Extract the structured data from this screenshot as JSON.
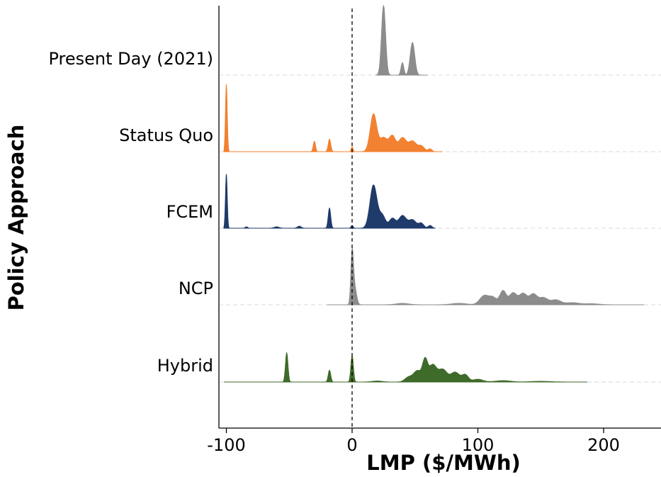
{
  "chart_data": {
    "type": "ridgeline",
    "xlabel": "LMP ($/MWh)",
    "ylabel": "Policy Approach",
    "xlim": [
      -105,
      245
    ],
    "xticks": [
      {
        "value": -100,
        "label": "-100"
      },
      {
        "value": 0,
        "label": "0"
      },
      {
        "value": 100,
        "label": "100"
      },
      {
        "value": 200,
        "label": "200"
      }
    ],
    "reference_line_x": 0,
    "grid": false,
    "series": [
      {
        "name": "Present Day (2021)",
        "color": "#8c8c8c",
        "x_range": [
          19,
          60
        ],
        "peaks": [
          {
            "x": 25,
            "h": 1.0,
            "w": 1.6
          },
          {
            "x": 40,
            "h": 0.18,
            "w": 1.1
          },
          {
            "x": 48,
            "h": 0.47,
            "w": 1.8
          }
        ]
      },
      {
        "name": "Status Quo",
        "color": "#f28131",
        "x_range": [
          -102,
          72
        ],
        "peaks": [
          {
            "x": -100,
            "h": 0.97,
            "w": 0.7
          },
          {
            "x": -30,
            "h": 0.15,
            "w": 0.9
          },
          {
            "x": -18,
            "h": 0.18,
            "w": 1.0
          },
          {
            "x": 0,
            "h": 0.07,
            "w": 0.7
          },
          {
            "x": 17,
            "h": 0.54,
            "w": 2.6
          },
          {
            "x": 25,
            "h": 0.2,
            "w": 3.0
          },
          {
            "x": 32,
            "h": 0.22,
            "w": 2.5
          },
          {
            "x": 40,
            "h": 0.2,
            "w": 3.0
          },
          {
            "x": 48,
            "h": 0.15,
            "w": 3.0
          },
          {
            "x": 55,
            "h": 0.08,
            "w": 2.5
          },
          {
            "x": 62,
            "h": 0.04,
            "w": 1.5
          }
        ]
      },
      {
        "name": "FCEM",
        "color": "#1f3b6b",
        "x_range": [
          -102,
          66
        ],
        "peaks": [
          {
            "x": -100,
            "h": 0.78,
            "w": 0.7
          },
          {
            "x": -84,
            "h": 0.02,
            "w": 1.0
          },
          {
            "x": -60,
            "h": 0.02,
            "w": 2.0
          },
          {
            "x": -42,
            "h": 0.03,
            "w": 1.5
          },
          {
            "x": -18,
            "h": 0.29,
            "w": 1.0
          },
          {
            "x": 0,
            "h": 0.04,
            "w": 0.8
          },
          {
            "x": 17,
            "h": 0.62,
            "w": 2.8
          },
          {
            "x": 24,
            "h": 0.18,
            "w": 2.5
          },
          {
            "x": 32,
            "h": 0.14,
            "w": 2.5
          },
          {
            "x": 40,
            "h": 0.18,
            "w": 3.0
          },
          {
            "x": 48,
            "h": 0.12,
            "w": 3.0
          },
          {
            "x": 55,
            "h": 0.07,
            "w": 2.0
          },
          {
            "x": 62,
            "h": 0.04,
            "w": 1.5
          }
        ]
      },
      {
        "name": "NCP",
        "color": "#8c8c8c",
        "x_range": [
          -20,
          232
        ],
        "peaks": [
          {
            "x": 0,
            "h": 0.71,
            "w": 1.0
          },
          {
            "x": 2,
            "h": 0.25,
            "w": 1.5
          },
          {
            "x": 40,
            "h": 0.02,
            "w": 5.0
          },
          {
            "x": 85,
            "h": 0.02,
            "w": 6.0
          },
          {
            "x": 105,
            "h": 0.13,
            "w": 3.5
          },
          {
            "x": 112,
            "h": 0.1,
            "w": 3.0
          },
          {
            "x": 120,
            "h": 0.2,
            "w": 2.5
          },
          {
            "x": 128,
            "h": 0.17,
            "w": 3.0
          },
          {
            "x": 136,
            "h": 0.16,
            "w": 3.0
          },
          {
            "x": 144,
            "h": 0.15,
            "w": 3.0
          },
          {
            "x": 152,
            "h": 0.1,
            "w": 3.5
          },
          {
            "x": 162,
            "h": 0.07,
            "w": 4.0
          },
          {
            "x": 175,
            "h": 0.03,
            "w": 5.0
          },
          {
            "x": 190,
            "h": 0.015,
            "w": 6.0
          }
        ]
      },
      {
        "name": "Hybrid",
        "color": "#3f6b2a",
        "x_range": [
          -102,
          187
        ],
        "peaks": [
          {
            "x": -52,
            "h": 0.42,
            "w": 1.0
          },
          {
            "x": -18,
            "h": 0.17,
            "w": 1.0
          },
          {
            "x": 0,
            "h": 0.38,
            "w": 1.0
          },
          {
            "x": 20,
            "h": 0.015,
            "w": 4.0
          },
          {
            "x": 45,
            "h": 0.07,
            "w": 3.0
          },
          {
            "x": 52,
            "h": 0.16,
            "w": 3.0
          },
          {
            "x": 58,
            "h": 0.3,
            "w": 2.0
          },
          {
            "x": 64,
            "h": 0.24,
            "w": 3.0
          },
          {
            "x": 72,
            "h": 0.18,
            "w": 3.5
          },
          {
            "x": 82,
            "h": 0.14,
            "w": 3.5
          },
          {
            "x": 90,
            "h": 0.1,
            "w": 2.5
          },
          {
            "x": 100,
            "h": 0.04,
            "w": 4.0
          },
          {
            "x": 120,
            "h": 0.02,
            "w": 6.0
          },
          {
            "x": 150,
            "h": 0.01,
            "w": 8.0
          }
        ]
      }
    ]
  }
}
